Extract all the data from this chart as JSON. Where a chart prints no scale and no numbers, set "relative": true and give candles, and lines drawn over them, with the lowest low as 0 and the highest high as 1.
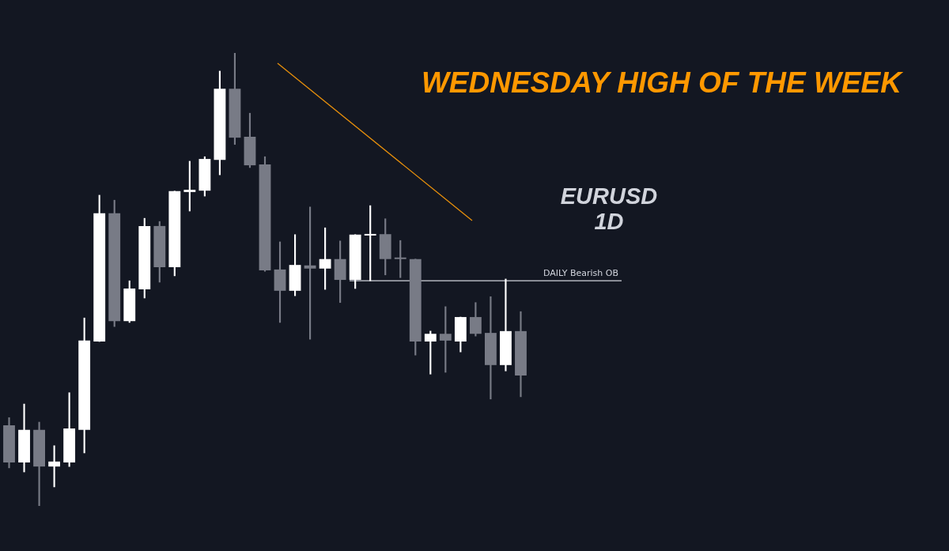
{
  "chart_data": {
    "type": "candlestick",
    "title": "WEDNESDAY HIGH OF THE WEEK",
    "annotations": [
      "EURUSD",
      "1D"
    ],
    "relative": true,
    "categories": [
      null,
      null,
      null,
      null,
      null,
      null,
      null,
      null,
      null,
      null,
      null,
      null,
      null,
      null,
      null,
      null,
      null,
      null,
      null,
      null,
      null,
      null,
      null,
      null,
      null,
      null,
      null,
      null,
      null,
      null,
      null,
      null,
      null,
      null,
      null
    ],
    "ohlc": [
      [
        0.178,
        0.195,
        0.084,
        0.096
      ],
      [
        0.096,
        0.225,
        0.075,
        0.168
      ],
      [
        0.168,
        0.185,
        0,
        0.087
      ],
      [
        0.087,
        0.133,
        0.042,
        0.098
      ],
      [
        0.096,
        0.25,
        0.087,
        0.171
      ],
      [
        0.168,
        0.415,
        0.117,
        0.365
      ],
      [
        0.363,
        0.686,
        0.363,
        0.646
      ],
      [
        0.646,
        0.675,
        0.396,
        0.408
      ],
      [
        0.408,
        0.497,
        0.405,
        0.48
      ],
      [
        0.478,
        0.635,
        0.459,
        0.618
      ],
      [
        0.618,
        0.628,
        0.494,
        0.527
      ],
      [
        0.527,
        0.695,
        0.508,
        0.695
      ],
      [
        0.693,
        0.761,
        0.651,
        0.698
      ],
      [
        0.696,
        0.771,
        0.684,
        0.766
      ],
      [
        0.764,
        0.96,
        0.731,
        0.921
      ],
      [
        0.921,
        1,
        0.798,
        0.813
      ],
      [
        0.815,
        0.867,
        0.747,
        0.752
      ],
      [
        0.754,
        0.771,
        0.518,
        0.52
      ],
      [
        0.522,
        0.583,
        0.405,
        0.475
      ],
      [
        0.475,
        0.599,
        0.464,
        0.532
      ],
      [
        0.531,
        0.66,
        0.368,
        0.524
      ],
      [
        0.524,
        0.614,
        0.478,
        0.545
      ],
      [
        0.545,
        0.585,
        0.449,
        0.499
      ],
      [
        0.499,
        0.599,
        0.48,
        0.599
      ],
      [
        0.597,
        0.663,
        0.497,
        0.6
      ],
      [
        0.6,
        0.634,
        0.51,
        0.545
      ],
      [
        0.546,
        0.586,
        0.504,
        0.545
      ],
      [
        0.545,
        0.545,
        0.333,
        0.363
      ],
      [
        0.363,
        0.386,
        0.291,
        0.38
      ],
      [
        0.38,
        0.44,
        0.295,
        0.365
      ],
      [
        0.363,
        0.417,
        0.34,
        0.417
      ],
      [
        0.417,
        0.449,
        0.375,
        0.38
      ],
      [
        0.382,
        0.462,
        0.236,
        0.311
      ],
      [
        0.311,
        0.501,
        0.298,
        0.386
      ],
      [
        0.386,
        0.429,
        0.241,
        0.288
      ]
    ],
    "colors": [
      "#787b86",
      "#ffffff",
      "#787b86",
      "#ffffff",
      "#ffffff",
      "#ffffff",
      "#ffffff",
      "#787b86",
      "#ffffff",
      "#ffffff",
      "#787b86",
      "#ffffff",
      "#ffffff",
      "#ffffff",
      "#ffffff",
      "#787b86",
      "#787b86",
      "#787b86",
      "#787b86",
      "#ffffff",
      "#787b86",
      "#ffffff",
      "#787b86",
      "#ffffff",
      "#ffffff",
      "#787b86",
      "#787b86",
      "#787b86",
      "#ffffff",
      "#787b86",
      "#ffffff",
      "#787b86",
      "#787b86",
      "#ffffff",
      "#787b86"
    ],
    "ref_lines": [
      {
        "axis": "y",
        "value": 0.497,
        "label": "DAILY Bearish OB",
        "color": "#d1d4dc"
      }
    ]
  }
}
